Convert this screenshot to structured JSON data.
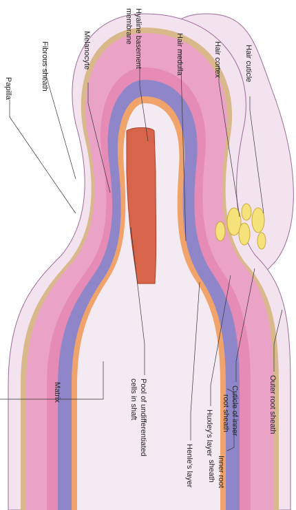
{
  "labels": {
    "hair_cuticle": "Hair cuticle",
    "hair_cortex": "Hair cortex",
    "hair_medulla": "Hair medulla",
    "hyaline_line1": "Hyaline basement",
    "hyaline_line2": "membrane",
    "melanocyte": "Melanocyte",
    "fibrous_sheath": "Fibrous sheath",
    "papilla": "Papilla",
    "outer_root_sheath": "Outer root sheath",
    "cuticle_inner_line1": "Cuticle of inner",
    "cuticle_inner_line2": "root sheath",
    "huxley": "Huxley's layer",
    "henle": "Henle's layer",
    "inner_root_line1": "Inner root",
    "inner_root_line2": "sheath",
    "pool_line1": "Pool of undifferentiated",
    "pool_line2": "cells in shaft",
    "matrix": "Matrix"
  },
  "colors": {
    "fibrous": "#f3e3ee",
    "fibrous_cells": "#9b6a9a",
    "hyaline": "#d9b98c",
    "outer_root": "#eaa3c6",
    "henle": "#e58bb5",
    "huxley": "#8e86c9",
    "cuticle_inner": "#f0a36a",
    "cortex": "#f4eaf2",
    "medulla": "#d8644a",
    "papilla": "#f6e27a"
  }
}
